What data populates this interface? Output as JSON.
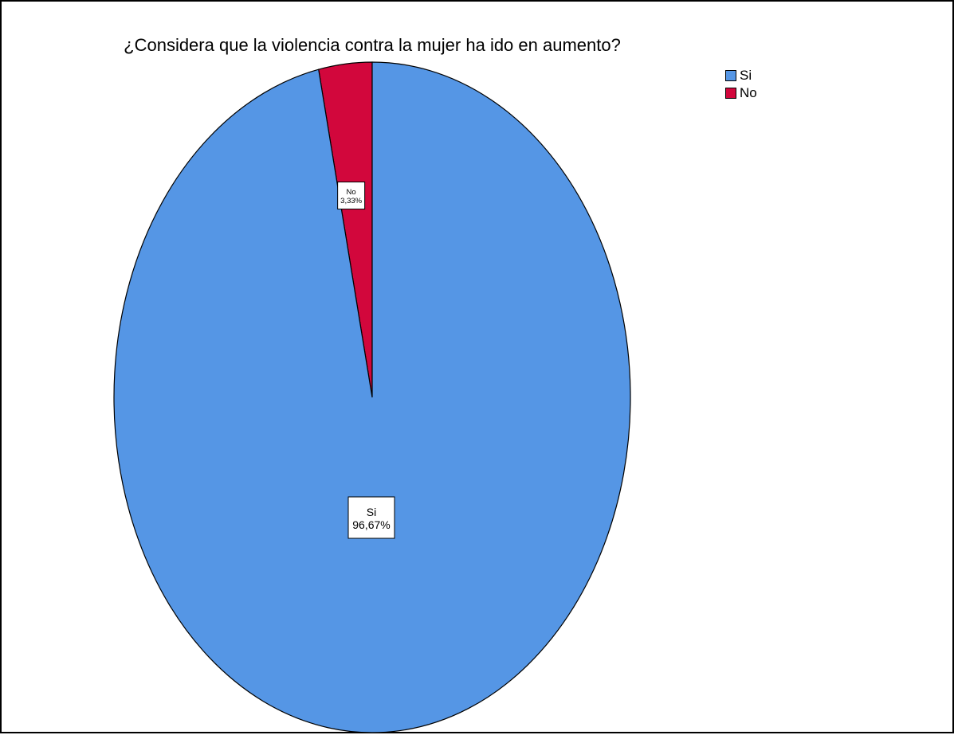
{
  "chart_data": {
    "type": "pie",
    "title": "¿Considera que la violencia contra la mujer ha ido en aumento?",
    "categories": [
      "Si",
      "No"
    ],
    "values": [
      96.67,
      3.33
    ],
    "value_labels": [
      "96,67%",
      "3,33%"
    ],
    "colors": [
      "#5596e5",
      "#d2073c"
    ],
    "legend": {
      "position": "top-right",
      "entries": [
        {
          "label": "Si",
          "color": "#5596e5"
        },
        {
          "label": "No",
          "color": "#d2073c"
        }
      ]
    }
  }
}
